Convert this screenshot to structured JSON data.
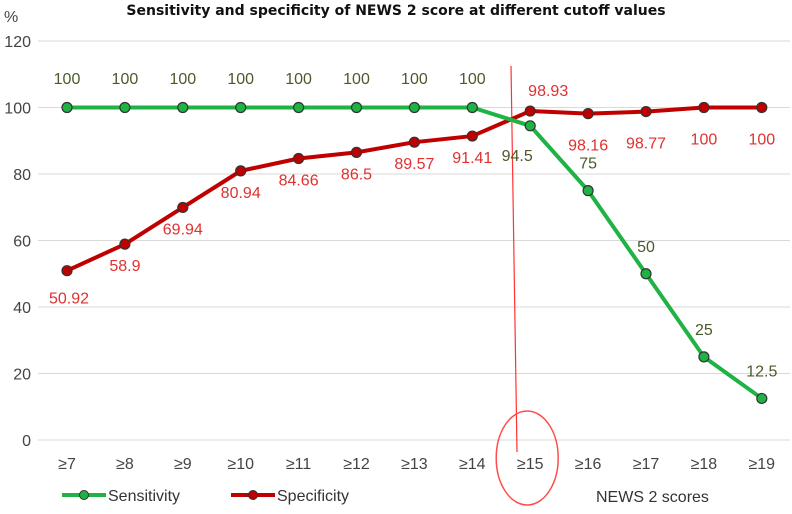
{
  "chart_data": {
    "type": "line",
    "title": "Sensitivity and specificity of NEWS 2 score at different cutoff values",
    "ylabel": "%",
    "xlabel": "NEWS 2 scores",
    "ylim": [
      0,
      120
    ],
    "yticks": [
      0,
      20,
      40,
      60,
      80,
      100,
      120
    ],
    "categories": [
      "≥7",
      "≥8",
      "≥9",
      "≥10",
      "≥11",
      "≥12",
      "≥13",
      "≥14",
      "≥15",
      "≥16",
      "≥17",
      "≥18",
      "≥19"
    ],
    "series": [
      {
        "name": "Sensitivity",
        "color": "#1fb244",
        "label_color": "#4a5a2a",
        "values": [
          100,
          100,
          100,
          100,
          100,
          100,
          100,
          100,
          94.5,
          75,
          50,
          25,
          12.5
        ],
        "labels": [
          "100",
          "100",
          "100",
          "100",
          "100",
          "100",
          "100",
          "100",
          "94.5",
          "75",
          "50",
          "25",
          "12.5"
        ]
      },
      {
        "name": "Specificity",
        "color": "#c00000",
        "label_color": "#e03030",
        "values": [
          50.92,
          58.9,
          69.94,
          80.94,
          84.66,
          86.5,
          89.57,
          91.41,
          98.93,
          98.16,
          98.77,
          100,
          100
        ],
        "labels": [
          "50.92",
          "58.9",
          "69.94",
          "80.94",
          "84.66",
          "86.5",
          "89.57",
          "91.41",
          "98.93",
          "98.16",
          "98.77",
          "100",
          "100"
        ]
      }
    ],
    "annotations": {
      "cutoff_category": "≥15",
      "line_color": "#ff3333",
      "circle_color": "#ff4d4d"
    },
    "grid": true,
    "legend_position": "bottom-left"
  }
}
